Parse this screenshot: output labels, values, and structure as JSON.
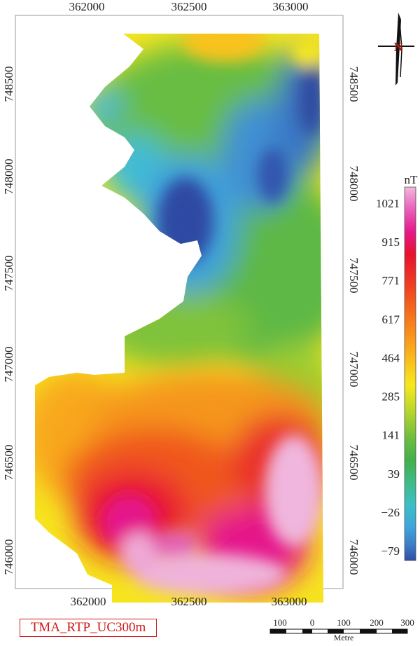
{
  "map": {
    "title": "TMA_RTP_UC300m",
    "x_ticks": [
      "362000",
      "362500",
      "363000"
    ],
    "y_ticks": [
      "748500",
      "748000",
      "747500",
      "747000",
      "746500",
      "746000"
    ],
    "north_label": "N"
  },
  "legend": {
    "unit": "nT",
    "labels": [
      "1021",
      "915",
      "771",
      "617",
      "464",
      "285",
      "141",
      "39",
      "−26",
      "−79"
    ],
    "colors": [
      "#f2b7dc",
      "#e95fba",
      "#e5198a",
      "#e8112f",
      "#ef3c22",
      "#f56a1d",
      "#f9941c",
      "#f9c21d",
      "#f7e81e",
      "#b8d62c",
      "#6fbe3f",
      "#43b04a",
      "#3fba86",
      "#3bbfc4",
      "#40a6dc",
      "#3b7cc6",
      "#2f4ea6"
    ]
  },
  "scale_bar": {
    "labels": [
      "100",
      "0",
      "100",
      "200",
      "300"
    ],
    "unit": "Metre"
  },
  "colors": {
    "title_border": "#d01818",
    "north_arrow_N": "#b01818"
  }
}
